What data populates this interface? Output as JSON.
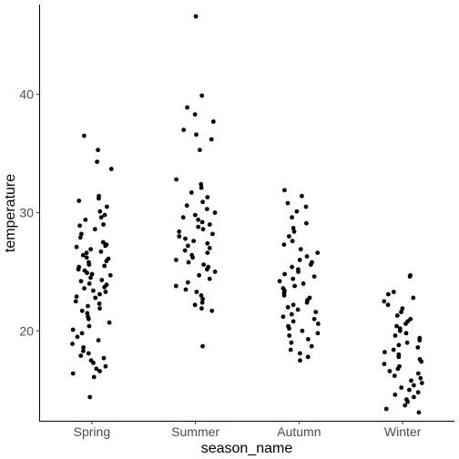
{
  "chart_data": {
    "type": "scatter",
    "jitter": true,
    "xlabel": "season_name",
    "ylabel": "temperature",
    "categories": [
      "Spring",
      "Summer",
      "Autumn",
      "Winter"
    ],
    "ylim": [
      12.4,
      47.6
    ],
    "yticks": [
      20,
      30,
      40
    ],
    "grid": false,
    "point_color": "#000000",
    "series": [
      {
        "category": "Spring",
        "values": [
          35.3,
          36.5,
          34.3,
          33.7,
          31.4,
          31.2,
          31.0,
          30.5,
          30.1,
          29.8,
          29.6,
          29.4,
          29.0,
          28.9,
          28.6,
          28.2,
          27.9,
          27.5,
          27.3,
          27.2,
          27.1,
          26.9,
          26.7,
          26.6,
          26.4,
          26.2,
          26.1,
          25.9,
          25.8,
          25.6,
          25.5,
          25.4,
          25.2,
          25.1,
          24.9,
          24.8,
          24.7,
          24.5,
          24.3,
          24.2,
          24.0,
          23.9,
          23.7,
          23.6,
          23.4,
          23.3,
          23.1,
          22.9,
          22.8,
          22.5,
          22.3,
          22.1,
          21.9,
          21.7,
          21.5,
          21.2,
          21.0,
          20.7,
          20.4,
          20.1,
          19.8,
          19.5,
          19.2,
          18.9,
          18.6,
          18.3,
          18.1,
          17.9,
          17.7,
          17.5,
          17.3,
          17.0,
          16.8,
          16.6,
          16.4,
          16.1,
          14.4
        ]
      },
      {
        "category": "Summer",
        "values": [
          46.6,
          39.9,
          38.9,
          38.3,
          37.7,
          37.0,
          36.6,
          36.2,
          35.3,
          32.8,
          32.4,
          32.1,
          31.7,
          31.3,
          30.9,
          30.6,
          30.3,
          30.0,
          29.8,
          29.6,
          29.4,
          29.2,
          29.0,
          28.8,
          28.6,
          28.4,
          28.2,
          28.0,
          27.8,
          27.6,
          27.4,
          27.2,
          27.0,
          26.8,
          26.6,
          26.4,
          26.2,
          26.0,
          25.8,
          25.6,
          25.4,
          25.2,
          25.0,
          24.7,
          24.4,
          24.1,
          23.8,
          23.5,
          23.3,
          23.0,
          22.7,
          22.4,
          22.2,
          21.9,
          21.7,
          18.7
        ]
      },
      {
        "category": "Autumn",
        "values": [
          31.9,
          31.4,
          30.8,
          30.5,
          30.1,
          29.6,
          29.1,
          28.7,
          28.4,
          28.0,
          27.6,
          27.3,
          26.9,
          26.6,
          26.3,
          26.0,
          25.8,
          25.6,
          25.4,
          25.2,
          25.0,
          24.8,
          24.6,
          24.4,
          24.2,
          24.0,
          23.8,
          23.6,
          23.4,
          23.2,
          23.0,
          22.8,
          22.6,
          22.4,
          22.2,
          22.0,
          21.8,
          21.6,
          21.4,
          21.2,
          21.0,
          20.8,
          20.6,
          20.4,
          20.2,
          20.0,
          19.8,
          19.6,
          19.3,
          19.0,
          18.7,
          18.4,
          18.1,
          17.8,
          17.5
        ]
      },
      {
        "category": "Winter",
        "values": [
          24.7,
          24.6,
          23.3,
          23.1,
          22.8,
          22.5,
          22.2,
          21.9,
          21.6,
          21.3,
          21.0,
          20.8,
          20.6,
          20.4,
          20.2,
          20.0,
          19.8,
          19.6,
          19.4,
          19.2,
          19.0,
          18.8,
          18.6,
          18.4,
          18.2,
          18.0,
          17.8,
          17.6,
          17.4,
          17.2,
          17.0,
          16.8,
          16.6,
          16.4,
          16.2,
          16.0,
          15.8,
          15.6,
          15.4,
          15.2,
          15.0,
          14.8,
          14.6,
          14.4,
          14.2,
          14.0,
          13.7,
          13.4,
          13.1
        ]
      }
    ]
  }
}
